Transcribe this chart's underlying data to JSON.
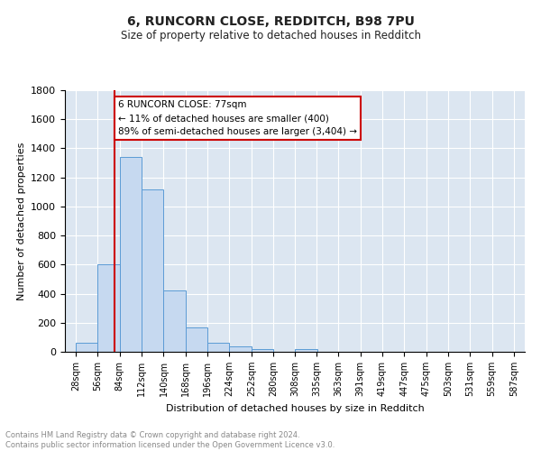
{
  "title": "6, RUNCORN CLOSE, REDDITCH, B98 7PU",
  "subtitle": "Size of property relative to detached houses in Redditch",
  "xlabel": "Distribution of detached houses by size in Redditch",
  "ylabel": "Number of detached properties",
  "bar_edges": [
    28,
    56,
    84,
    112,
    140,
    168,
    196,
    224,
    252,
    280,
    308,
    335,
    363,
    391,
    419,
    447,
    475,
    503,
    531,
    559,
    587
  ],
  "bar_heights": [
    60,
    600,
    1340,
    1120,
    420,
    170,
    65,
    38,
    18,
    0,
    18,
    0,
    0,
    0,
    0,
    0,
    0,
    0,
    0,
    0
  ],
  "bar_color": "#c6d9f0",
  "bar_edge_color": "#5b9bd5",
  "vline_x": 77,
  "vline_color": "#cc0000",
  "annotation_text": "6 RUNCORN CLOSE: 77sqm\n← 11% of detached houses are smaller (400)\n89% of semi-detached houses are larger (3,404) →",
  "annotation_box_color": "#ffffff",
  "annotation_border_color": "#cc0000",
  "bg_color": "#dce6f1",
  "ylim": [
    0,
    1800
  ],
  "yticks": [
    0,
    200,
    400,
    600,
    800,
    1000,
    1200,
    1400,
    1600,
    1800
  ],
  "footnote": "Contains HM Land Registry data © Crown copyright and database right 2024.\nContains public sector information licensed under the Open Government Licence v3.0.",
  "tick_labels": [
    "28sqm",
    "56sqm",
    "84sqm",
    "112sqm",
    "140sqm",
    "168sqm",
    "196sqm",
    "224sqm",
    "252sqm",
    "280sqm",
    "308sqm",
    "335sqm",
    "363sqm",
    "391sqm",
    "419sqm",
    "447sqm",
    "475sqm",
    "503sqm",
    "531sqm",
    "559sqm",
    "587sqm"
  ]
}
